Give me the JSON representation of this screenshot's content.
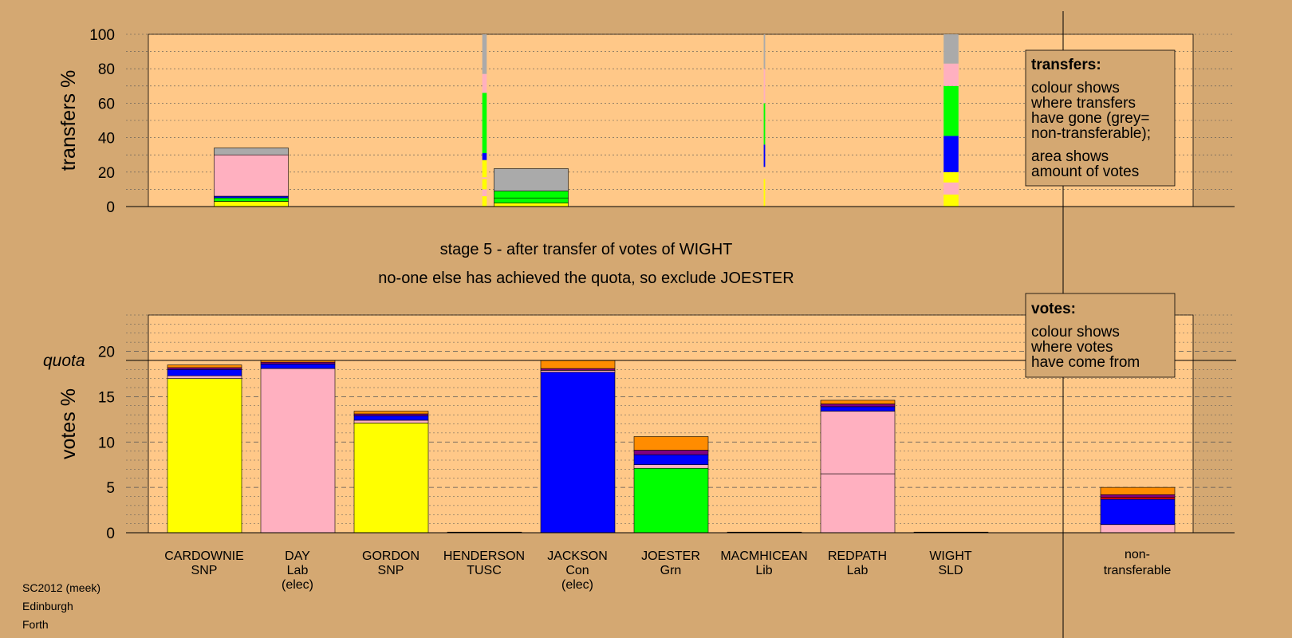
{
  "stage_text": "stage 5 - after transfer of votes of WIGHT",
  "decision_text": "no-one else has achieved the quota, so exclude JOESTER",
  "footer": [
    "SC2012 (meek)",
    "Edinburgh",
    "Forth"
  ],
  "colors": {
    "SNP": "#ffff00",
    "Lab": "#ffb0c0",
    "TUSC": "#ff0000",
    "Con": "#0000ff",
    "Grn": "#00ff00",
    "Lib": "#ff8c00",
    "SLD": "#800080",
    "NT": "#aaaaaa",
    "panel": "#ffc888",
    "background": "#d4a872"
  },
  "candidates": [
    {
      "name": "CARDOWNIE",
      "party": "SNP",
      "status": ""
    },
    {
      "name": "DAY",
      "party": "Lab",
      "status": "(elec)"
    },
    {
      "name": "GORDON",
      "party": "SNP",
      "status": ""
    },
    {
      "name": "HENDERSON",
      "party": "TUSC",
      "status": ""
    },
    {
      "name": "JACKSON",
      "party": "Con",
      "status": "(elec)"
    },
    {
      "name": "JOESTER",
      "party": "Grn",
      "status": ""
    },
    {
      "name": "MACMHICEAN",
      "party": "Lib",
      "status": ""
    },
    {
      "name": "REDPATH",
      "party": "Lab",
      "status": ""
    },
    {
      "name": "WIGHT",
      "party": "SLD",
      "status": ""
    },
    {
      "name": "non-",
      "party": "transferable",
      "status": ""
    }
  ],
  "legends": {
    "transfers": {
      "title": "transfers:",
      "lines": [
        "colour shows",
        "where transfers",
        "have gone (grey=",
        "non-transferable);",
        "area shows",
        "amount of votes"
      ]
    },
    "votes": {
      "title": "votes:",
      "lines": [
        "colour shows",
        "where votes",
        "have come from"
      ]
    }
  },
  "chart_data": [
    {
      "type": "bar",
      "subtype": "stacked-transfers",
      "ylabel": "transfers %",
      "ylim": [
        0,
        100
      ],
      "yticks": [
        0,
        20,
        40,
        60,
        80,
        100
      ],
      "bars": [
        {
          "column": 0.5,
          "width": 1,
          "segments": [
            {
              "party": "SNP",
              "from": 0,
              "to": 3
            },
            {
              "party": "Grn",
              "from": 3,
              "to": 5
            },
            {
              "party": "Con",
              "from": 5,
              "to": 6
            },
            {
              "party": "Lab",
              "from": 6,
              "to": 30
            },
            {
              "party": "NT",
              "from": 30,
              "to": 34
            }
          ]
        },
        {
          "column": 3,
          "width": 0.06,
          "segments": [
            {
              "party": "SNP",
              "from": 0,
              "to": 6
            },
            {
              "party": "Lab",
              "from": 6,
              "to": 10
            },
            {
              "party": "SNP",
              "from": 10,
              "to": 16
            },
            {
              "party": "Lab",
              "from": 16,
              "to": 17
            },
            {
              "party": "SNP",
              "from": 17,
              "to": 27
            },
            {
              "party": "Con",
              "from": 27,
              "to": 31
            },
            {
              "party": "Grn",
              "from": 31,
              "to": 66
            },
            {
              "party": "Lab",
              "from": 66,
              "to": 77
            },
            {
              "party": "NT",
              "from": 77,
              "to": 100
            }
          ]
        },
        {
          "column": 3.5,
          "width": 1,
          "segments": [
            {
              "party": "SNP",
              "from": 0,
              "to": 2
            },
            {
              "party": "Grn",
              "from": 2,
              "to": 5
            },
            {
              "party": "Grn",
              "from": 5,
              "to": 9
            },
            {
              "party": "NT",
              "from": 9,
              "to": 22
            }
          ]
        },
        {
          "column": 6,
          "width": 0.02,
          "segments": [
            {
              "party": "SNP",
              "from": 0,
              "to": 16
            },
            {
              "party": "Con",
              "from": 23,
              "to": 36
            },
            {
              "party": "Grn",
              "from": 36,
              "to": 60
            },
            {
              "party": "Lab",
              "from": 60,
              "to": 80
            },
            {
              "party": "NT",
              "from": 80,
              "to": 100
            }
          ]
        },
        {
          "column": 8,
          "width": 0.2,
          "segments": [
            {
              "party": "SNP",
              "from": 0,
              "to": 7
            },
            {
              "party": "Lab",
              "from": 7,
              "to": 14
            },
            {
              "party": "SNP",
              "from": 14,
              "to": 20
            },
            {
              "party": "Con",
              "from": 20,
              "to": 41
            },
            {
              "party": "Grn",
              "from": 41,
              "to": 70
            },
            {
              "party": "Lab",
              "from": 70,
              "to": 83
            },
            {
              "party": "NT",
              "from": 83,
              "to": 100
            }
          ]
        }
      ]
    },
    {
      "type": "bar",
      "subtype": "stacked-votes",
      "ylabel": "votes %",
      "ylim": [
        0,
        24
      ],
      "yticks": [
        0,
        5,
        10,
        15,
        20
      ],
      "quota": 19,
      "quota_label": "quota",
      "bars": [
        {
          "column": 0,
          "segments": [
            {
              "party": "SNP",
              "from": 0,
              "to": 17
            },
            {
              "party": "Lab",
              "from": 17,
              "to": 17.3
            },
            {
              "party": "Con",
              "from": 17.3,
              "to": 18
            },
            {
              "party": "SLD",
              "from": 18,
              "to": 18.2
            },
            {
              "party": "Lib",
              "from": 18.2,
              "to": 18.5
            }
          ]
        },
        {
          "column": 1,
          "segments": [
            {
              "party": "Lab",
              "from": 0,
              "to": 18.1
            },
            {
              "party": "Con",
              "from": 18.1,
              "to": 18.6
            },
            {
              "party": "SLD",
              "from": 18.6,
              "to": 18.8
            },
            {
              "party": "Lib",
              "from": 18.8,
              "to": 19
            }
          ]
        },
        {
          "column": 2,
          "segments": [
            {
              "party": "SNP",
              "from": 0,
              "to": 12.1
            },
            {
              "party": "Lab",
              "from": 12.1,
              "to": 12.4
            },
            {
              "party": "Con",
              "from": 12.4,
              "to": 12.9
            },
            {
              "party": "SLD",
              "from": 12.9,
              "to": 13.1
            },
            {
              "party": "Lib",
              "from": 13.1,
              "to": 13.4
            }
          ]
        },
        {
          "column": 3,
          "segments": [
            {
              "party": "TUSC",
              "from": 0,
              "to": 0.05
            }
          ]
        },
        {
          "column": 4,
          "segments": [
            {
              "party": "Con",
              "from": 0,
              "to": 17.7
            },
            {
              "party": "Lab",
              "from": 17.7,
              "to": 17.9
            },
            {
              "party": "SLD",
              "from": 17.9,
              "to": 18.1
            },
            {
              "party": "Lib",
              "from": 18.1,
              "to": 19
            }
          ]
        },
        {
          "column": 5,
          "segments": [
            {
              "party": "Grn",
              "from": 0,
              "to": 7.1
            },
            {
              "party": "Lab",
              "from": 7.1,
              "to": 7.5
            },
            {
              "party": "Con",
              "from": 7.5,
              "to": 8.6
            },
            {
              "party": "SLD",
              "from": 8.6,
              "to": 9.1
            },
            {
              "party": "Lib",
              "from": 9.1,
              "to": 10.6
            }
          ]
        },
        {
          "column": 6,
          "segments": [
            {
              "party": "Lib",
              "from": 0,
              "to": 0.05
            }
          ]
        },
        {
          "column": 7,
          "segments": [
            {
              "party": "Lab",
              "from": 0,
              "to": 6.5
            },
            {
              "party": "Lab",
              "from": 6.5,
              "to": 13.4
            },
            {
              "party": "Con",
              "from": 13.4,
              "to": 13.9
            },
            {
              "party": "SLD",
              "from": 13.9,
              "to": 14.2
            },
            {
              "party": "Lib",
              "from": 14.2,
              "to": 14.6
            }
          ]
        },
        {
          "column": 8,
          "segments": [
            {
              "party": "SLD",
              "from": 0,
              "to": 0.05
            }
          ]
        },
        {
          "column": 10,
          "segments": [
            {
              "party": "Lab",
              "from": 0,
              "to": 0.9
            },
            {
              "party": "Con",
              "from": 0.9,
              "to": 3.7
            },
            {
              "party": "TUSC",
              "from": 3.7,
              "to": 3.9
            },
            {
              "party": "SLD",
              "from": 3.9,
              "to": 4.2
            },
            {
              "party": "Lib",
              "from": 4.2,
              "to": 5.0
            }
          ]
        }
      ]
    }
  ]
}
